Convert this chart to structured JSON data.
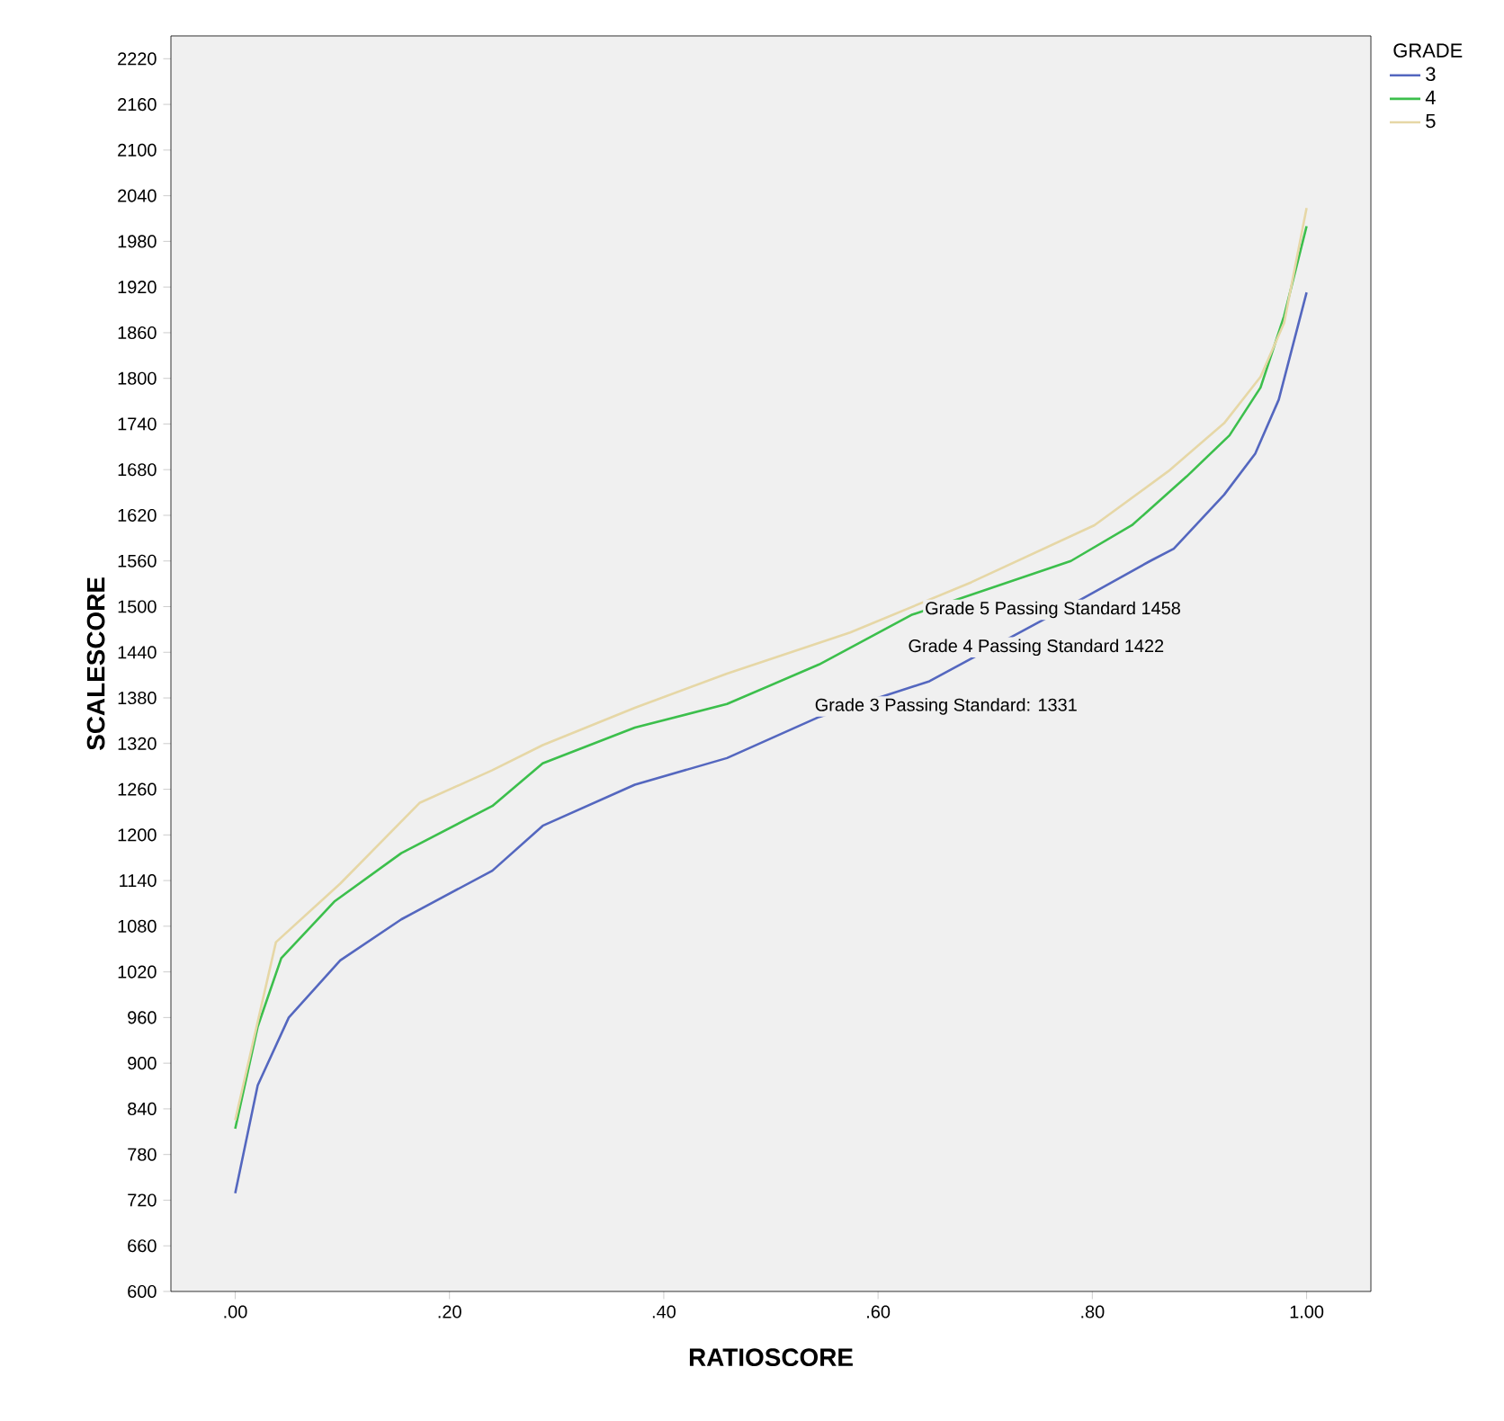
{
  "chart_data": {
    "type": "line",
    "xlabel": "RATIOSCORE",
    "ylabel": "SCALESCORE",
    "legend_title": "GRADE",
    "legend": "top right",
    "grid": false,
    "xlim": [
      -0.06,
      1.06
    ],
    "ylim": [
      600,
      2250
    ],
    "xticks": [
      {
        "value": 0,
        "label": ".00"
      },
      {
        "value": 0.2,
        "label": ".20"
      },
      {
        "value": 0.4,
        "label": ".40"
      },
      {
        "value": 0.6,
        "label": ".60"
      },
      {
        "value": 0.8,
        "label": ".80"
      },
      {
        "value": 1.0,
        "label": "1.00"
      }
    ],
    "yticks": [
      600,
      660,
      720,
      780,
      840,
      900,
      960,
      1020,
      1080,
      1140,
      1200,
      1260,
      1320,
      1380,
      1440,
      1500,
      1560,
      1620,
      1680,
      1740,
      1800,
      1860,
      1920,
      1980,
      2040,
      2100,
      2160,
      2220
    ],
    "series": [
      {
        "name": "3",
        "color": "#5467bf",
        "x": [
          0,
          0.021,
          0.05,
          0.098,
          0.155,
          0.24,
          0.287,
          0.373,
          0.459,
          0.545,
          0.648,
          0.79,
          0.854,
          0.876,
          0.923,
          0.952,
          0.974,
          1.0
        ],
        "values": [
          729,
          871,
          960,
          1035,
          1089,
          1153,
          1212,
          1266,
          1301,
          1355,
          1402,
          1510,
          1560,
          1576,
          1647,
          1701,
          1772,
          1913
        ]
      },
      {
        "name": "4",
        "color": "#3cbf4c",
        "x": [
          0,
          0.021,
          0.043,
          0.093,
          0.155,
          0.24,
          0.287,
          0.373,
          0.459,
          0.545,
          0.631,
          0.78,
          0.837,
          0.888,
          0.928,
          0.957,
          0.979,
          1.0
        ],
        "values": [
          814,
          948,
          1038,
          1113,
          1176,
          1238,
          1294,
          1341,
          1372,
          1424,
          1489,
          1560,
          1607,
          1671,
          1725,
          1788,
          1882,
          2000
        ]
      },
      {
        "name": "5",
        "color": "#e6d7a6",
        "x": [
          0,
          0.038,
          0.098,
          0.172,
          0.24,
          0.287,
          0.373,
          0.459,
          0.574,
          0.687,
          0.802,
          0.871,
          0.923,
          0.957,
          0.979,
          1.0
        ],
        "values": [
          825,
          1059,
          1136,
          1242,
          1285,
          1318,
          1367,
          1412,
          1466,
          1532,
          1607,
          1678,
          1741,
          1802,
          1873,
          2024
        ]
      }
    ],
    "annotations": [
      "Grade 5 Passing Standard 1458",
      "Grade 4 Passing Standard 1422",
      "Grade 3 Passing Standard: 1331"
    ]
  }
}
